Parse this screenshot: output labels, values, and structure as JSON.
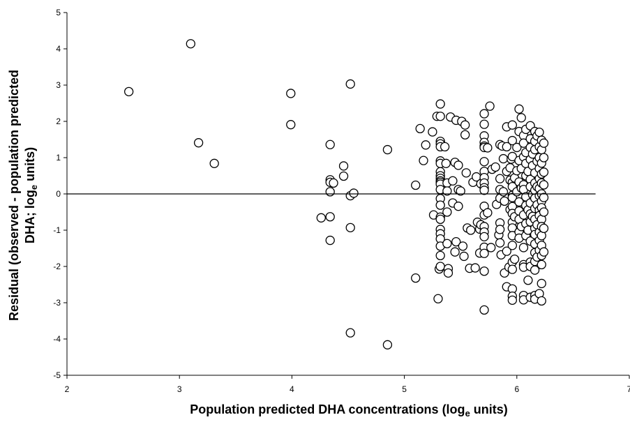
{
  "colors": {
    "background": "#ffffff",
    "marker_fill": "#ffffff",
    "marker_stroke": "#000000",
    "axis": "#000000"
  },
  "chart_data": {
    "type": "scatter",
    "title": "",
    "xlabel": {
      "prefix": "Population predicted DHA concentrations (log",
      "subscript": "e",
      "suffix": " units)"
    },
    "ylabel": {
      "line1": "Residual (observed - population predicted",
      "line2": {
        "prefix": "DHA; log",
        "subscript": "e",
        "suffix": " units)"
      }
    },
    "xlim": [
      2,
      7
    ],
    "ylim": [
      -5,
      5
    ],
    "x_ticks": [
      "2",
      "3",
      "4",
      "5",
      "6",
      "7"
    ],
    "y_ticks": [
      "5",
      "4",
      "3",
      "2",
      "1",
      "0",
      "-1",
      "-2",
      "-3",
      "-4",
      "-5"
    ],
    "reference_line_y": 0,
    "grid": false,
    "legend": "none",
    "points": [
      [
        2.55,
        2.82
      ],
      [
        3.1,
        4.14
      ],
      [
        3.17,
        1.41
      ],
      [
        3.31,
        0.84
      ],
      [
        3.99,
        2.77
      ],
      [
        3.99,
        1.91
      ],
      [
        4.26,
        -0.66
      ],
      [
        4.34,
        1.36
      ],
      [
        4.34,
        0.39
      ],
      [
        4.34,
        0.32
      ],
      [
        4.37,
        0.3
      ],
      [
        4.34,
        0.06
      ],
      [
        4.34,
        -0.63
      ],
      [
        4.34,
        -1.28
      ],
      [
        4.46,
        0.77
      ],
      [
        4.46,
        0.49
      ],
      [
        4.52,
        3.03
      ],
      [
        4.52,
        -0.05
      ],
      [
        4.55,
        0.02
      ],
      [
        4.52,
        -0.93
      ],
      [
        4.52,
        -3.83
      ],
      [
        4.85,
        1.22
      ],
      [
        4.85,
        -4.16
      ],
      [
        5.1,
        0.24
      ],
      [
        5.1,
        -2.32
      ],
      [
        5.14,
        1.8
      ],
      [
        5.17,
        0.92
      ],
      [
        5.19,
        1.35
      ],
      [
        5.25,
        1.71
      ],
      [
        5.26,
        -0.58
      ],
      [
        5.29,
        2.14
      ],
      [
        5.3,
        -2.89
      ],
      [
        5.31,
        -2.07
      ],
      [
        5.32,
        2.48
      ],
      [
        5.32,
        2.14
      ],
      [
        5.32,
        1.45
      ],
      [
        5.32,
        1.38
      ],
      [
        5.32,
        1.3
      ],
      [
        5.32,
        0.91
      ],
      [
        5.32,
        0.84
      ],
      [
        5.32,
        0.61
      ],
      [
        5.32,
        0.5
      ],
      [
        5.32,
        0.43
      ],
      [
        5.32,
        0.36
      ],
      [
        5.32,
        0.32
      ],
      [
        5.32,
        0.27
      ],
      [
        5.32,
        0.12
      ],
      [
        5.32,
        -0.13
      ],
      [
        5.32,
        -0.31
      ],
      [
        5.32,
        -0.64
      ],
      [
        5.32,
        -0.7
      ],
      [
        5.32,
        -0.98
      ],
      [
        5.32,
        -1.1
      ],
      [
        5.32,
        -1.24
      ],
      [
        5.32,
        -1.44
      ],
      [
        5.32,
        -1.7
      ],
      [
        5.32,
        -2.0
      ],
      [
        5.36,
        1.3
      ],
      [
        5.37,
        0.84
      ],
      [
        5.38,
        0.3
      ],
      [
        5.38,
        0.08
      ],
      [
        5.38,
        -0.5
      ],
      [
        5.38,
        -1.37
      ],
      [
        5.39,
        -2.06
      ],
      [
        5.39,
        -2.18
      ],
      [
        5.41,
        2.12
      ],
      [
        5.43,
        0.36
      ],
      [
        5.43,
        -0.25
      ],
      [
        5.45,
        0.87
      ],
      [
        5.45,
        -1.6
      ],
      [
        5.46,
        2.03
      ],
      [
        5.46,
        -1.32
      ],
      [
        5.48,
        0.79
      ],
      [
        5.48,
        0.12
      ],
      [
        5.48,
        -0.34
      ],
      [
        5.5,
        0.08
      ],
      [
        5.51,
        2.0
      ],
      [
        5.52,
        -1.44
      ],
      [
        5.53,
        -1.72
      ],
      [
        5.54,
        1.9
      ],
      [
        5.54,
        1.63
      ],
      [
        5.55,
        0.58
      ],
      [
        5.56,
        -0.94
      ],
      [
        5.58,
        -2.05
      ],
      [
        5.59,
        -1.0
      ],
      [
        5.61,
        0.32
      ],
      [
        5.63,
        -2.04
      ],
      [
        5.64,
        0.47
      ],
      [
        5.65,
        -0.78
      ],
      [
        5.67,
        -0.97
      ],
      [
        5.67,
        -1.63
      ],
      [
        5.68,
        0.28
      ],
      [
        5.68,
        -0.85
      ],
      [
        5.71,
        2.21
      ],
      [
        5.71,
        1.92
      ],
      [
        5.71,
        1.6
      ],
      [
        5.71,
        1.42
      ],
      [
        5.71,
        1.32
      ],
      [
        5.71,
        1.28
      ],
      [
        5.71,
        0.89
      ],
      [
        5.71,
        0.62
      ],
      [
        5.71,
        0.45
      ],
      [
        5.71,
        0.3
      ],
      [
        5.71,
        0.17
      ],
      [
        5.71,
        0.1
      ],
      [
        5.71,
        -0.34
      ],
      [
        5.71,
        -0.58
      ],
      [
        5.71,
        -0.9
      ],
      [
        5.71,
        -1.05
      ],
      [
        5.71,
        -1.18
      ],
      [
        5.71,
        -1.47
      ],
      [
        5.71,
        -1.64
      ],
      [
        5.71,
        -2.13
      ],
      [
        5.71,
        -3.2
      ],
      [
        5.74,
        1.27
      ],
      [
        5.74,
        -0.52
      ],
      [
        5.76,
        2.42
      ],
      [
        5.77,
        -1.48
      ],
      [
        5.78,
        0.68
      ],
      [
        5.81,
        0.74
      ],
      [
        5.82,
        -0.29
      ],
      [
        5.84,
        -1.13
      ],
      [
        5.85,
        1.36
      ],
      [
        5.85,
        0.42
      ],
      [
        5.85,
        0.12
      ],
      [
        5.85,
        -0.12
      ],
      [
        5.85,
        -0.8
      ],
      [
        5.85,
        -0.98
      ],
      [
        5.85,
        -1.35
      ],
      [
        5.86,
        -1.68
      ],
      [
        5.87,
        1.32
      ],
      [
        5.88,
        0.97
      ],
      [
        5.88,
        0.06
      ],
      [
        5.89,
        -0.2
      ],
      [
        5.89,
        -2.18
      ],
      [
        5.91,
        1.85
      ],
      [
        5.91,
        1.3
      ],
      [
        5.91,
        0.62
      ],
      [
        5.91,
        -1.58
      ],
      [
        5.91,
        -2.56
      ],
      [
        5.93,
        -2.02
      ],
      [
        5.94,
        0.38
      ],
      [
        5.94,
        0.72
      ],
      [
        5.94,
        -0.43
      ],
      [
        5.95,
        0.96
      ],
      [
        5.96,
        1.9
      ],
      [
        5.96,
        1.47
      ],
      [
        5.96,
        1.03
      ],
      [
        5.96,
        0.32
      ],
      [
        5.96,
        0.2
      ],
      [
        5.96,
        -0.04
      ],
      [
        5.96,
        -0.1
      ],
      [
        5.96,
        -0.35
      ],
      [
        5.96,
        -0.54
      ],
      [
        5.96,
        -0.78
      ],
      [
        5.96,
        -0.94
      ],
      [
        5.96,
        -1.15
      ],
      [
        5.96,
        -1.42
      ],
      [
        5.96,
        -1.88
      ],
      [
        5.96,
        -2.08
      ],
      [
        5.96,
        -2.62
      ],
      [
        5.96,
        -2.82
      ],
      [
        5.96,
        -2.93
      ],
      [
        5.98,
        0.44
      ],
      [
        5.98,
        -0.63
      ],
      [
        5.98,
        -1.8
      ],
      [
        6.0,
        1.28
      ],
      [
        6.0,
        0.64
      ],
      [
        6.0,
        0.06
      ],
      [
        6.02,
        2.34
      ],
      [
        6.02,
        1.72
      ],
      [
        6.02,
        0.92
      ],
      [
        6.02,
        0.33
      ],
      [
        6.02,
        -0.22
      ],
      [
        6.02,
        -0.47
      ],
      [
        6.02,
        -0.7
      ],
      [
        6.02,
        -1.05
      ],
      [
        6.02,
        -1.22
      ],
      [
        6.04,
        2.1
      ],
      [
        6.04,
        0.7
      ],
      [
        6.04,
        0.16
      ],
      [
        6.04,
        -0.9
      ],
      [
        6.06,
        1.61
      ],
      [
        6.06,
        1.4
      ],
      [
        6.06,
        1.02
      ],
      [
        6.06,
        0.25
      ],
      [
        6.06,
        0.12
      ],
      [
        6.06,
        -0.58
      ],
      [
        6.06,
        -1.48
      ],
      [
        6.06,
        -1.95
      ],
      [
        6.06,
        -2.02
      ],
      [
        6.06,
        -2.8
      ],
      [
        6.06,
        -2.92
      ],
      [
        6.08,
        1.78
      ],
      [
        6.08,
        1.14
      ],
      [
        6.08,
        0.84
      ],
      [
        6.08,
        0.5
      ],
      [
        6.08,
        -0.08
      ],
      [
        6.08,
        -0.32
      ],
      [
        6.08,
        -0.82
      ],
      [
        6.08,
        -1.15
      ],
      [
        6.1,
        0.62
      ],
      [
        6.1,
        -0.44
      ],
      [
        6.1,
        -1.0
      ],
      [
        6.1,
        -2.38
      ],
      [
        6.12,
        1.88
      ],
      [
        6.12,
        1.52
      ],
      [
        6.12,
        1.28
      ],
      [
        6.12,
        0.95
      ],
      [
        6.12,
        0.4
      ],
      [
        6.12,
        0.2
      ],
      [
        6.12,
        -0.25
      ],
      [
        6.12,
        -0.55
      ],
      [
        6.12,
        -0.77
      ],
      [
        6.12,
        -1.3
      ],
      [
        6.12,
        -1.88
      ],
      [
        6.12,
        -2.0
      ],
      [
        6.12,
        -2.85
      ],
      [
        6.14,
        1.1
      ],
      [
        6.14,
        0.78
      ],
      [
        6.14,
        -0.02
      ],
      [
        6.14,
        -0.62
      ],
      [
        6.16,
        1.72
      ],
      [
        6.16,
        1.45
      ],
      [
        6.16,
        1.22
      ],
      [
        6.16,
        0.58
      ],
      [
        6.16,
        0.3
      ],
      [
        6.16,
        0.1
      ],
      [
        6.16,
        -0.12
      ],
      [
        6.16,
        -0.4
      ],
      [
        6.16,
        -0.7
      ],
      [
        6.16,
        -0.95
      ],
      [
        6.16,
        -1.12
      ],
      [
        6.16,
        -1.38
      ],
      [
        6.16,
        -1.62
      ],
      [
        6.16,
        -1.86
      ],
      [
        6.16,
        -2.1
      ],
      [
        6.16,
        -2.8
      ],
      [
        6.16,
        -2.9
      ],
      [
        6.18,
        1.6
      ],
      [
        6.18,
        0.9
      ],
      [
        6.18,
        0.2
      ],
      [
        6.18,
        -0.3
      ],
      [
        6.18,
        -0.85
      ],
      [
        6.18,
        -1.74
      ],
      [
        6.2,
        1.7
      ],
      [
        6.2,
        1.3
      ],
      [
        6.2,
        1.0
      ],
      [
        6.2,
        0.7
      ],
      [
        6.2,
        0.42
      ],
      [
        6.2,
        0.15
      ],
      [
        6.2,
        -0.05
      ],
      [
        6.2,
        -0.45
      ],
      [
        6.2,
        -0.6
      ],
      [
        6.2,
        -1.05
      ],
      [
        6.2,
        -1.28
      ],
      [
        6.2,
        -1.55
      ],
      [
        6.2,
        -2.75
      ],
      [
        6.22,
        1.48
      ],
      [
        6.22,
        1.22
      ],
      [
        6.22,
        0.85
      ],
      [
        6.22,
        0.55
      ],
      [
        6.22,
        0.3
      ],
      [
        6.22,
        0.0
      ],
      [
        6.22,
        -0.2
      ],
      [
        6.22,
        -0.38
      ],
      [
        6.22,
        -0.7
      ],
      [
        6.22,
        -0.9
      ],
      [
        6.22,
        -1.15
      ],
      [
        6.22,
        -1.42
      ],
      [
        6.22,
        -1.7
      ],
      [
        6.22,
        -1.95
      ],
      [
        6.22,
        -2.47
      ],
      [
        6.22,
        -2.95
      ],
      [
        6.24,
        1.4
      ],
      [
        6.24,
        1.0
      ],
      [
        6.24,
        0.6
      ],
      [
        6.24,
        0.25
      ],
      [
        6.24,
        -0.1
      ],
      [
        6.24,
        -0.5
      ],
      [
        6.24,
        -0.95
      ],
      [
        6.24,
        -1.6
      ]
    ]
  }
}
